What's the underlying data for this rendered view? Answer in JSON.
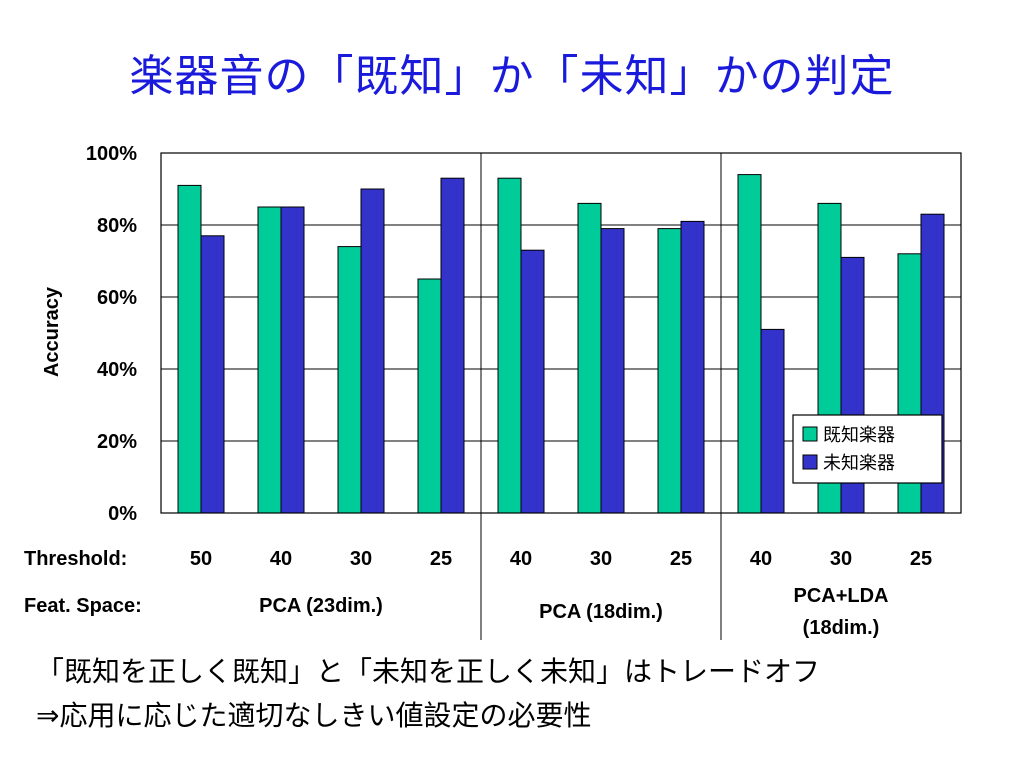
{
  "slide": {
    "title": "楽器音の「既知」か「未知」かの判定",
    "footer_line1": "「既知を正しく既知」と「未知を正しく未知」はトレードオフ",
    "footer_line2": "⇒応用に応じた適切なしきい値設定の必要性"
  },
  "chart_data": {
    "type": "bar",
    "ylabel": "Accuracy",
    "ylim": [
      0,
      100
    ],
    "yticks": [
      "0%",
      "20%",
      "40%",
      "60%",
      "80%",
      "100%"
    ],
    "categories": [
      "50",
      "40",
      "30",
      "25",
      "40",
      "30",
      "25",
      "40",
      "30",
      "25"
    ],
    "groups": [
      {
        "label_lines": [
          "PCA (23dim.)"
        ],
        "size": 4
      },
      {
        "label_lines": [
          "PCA (18dim.)"
        ],
        "size": 3
      },
      {
        "label_lines": [
          "PCA+LDA",
          "(18dim.)"
        ],
        "size": 3
      }
    ],
    "row_labels": {
      "threshold": "Threshold:",
      "feature_space": "Feat. Space:"
    },
    "series": [
      {
        "name": "既知楽器",
        "color": "#00cc99",
        "values": [
          91,
          85,
          74,
          65,
          93,
          86,
          79,
          94,
          86,
          72
        ]
      },
      {
        "name": "未知楽器",
        "color": "#3333cc",
        "values": [
          77,
          85,
          90,
          93,
          73,
          79,
          81,
          51,
          71,
          83
        ]
      }
    ],
    "legend_position": "lower-right",
    "grid": true
  }
}
